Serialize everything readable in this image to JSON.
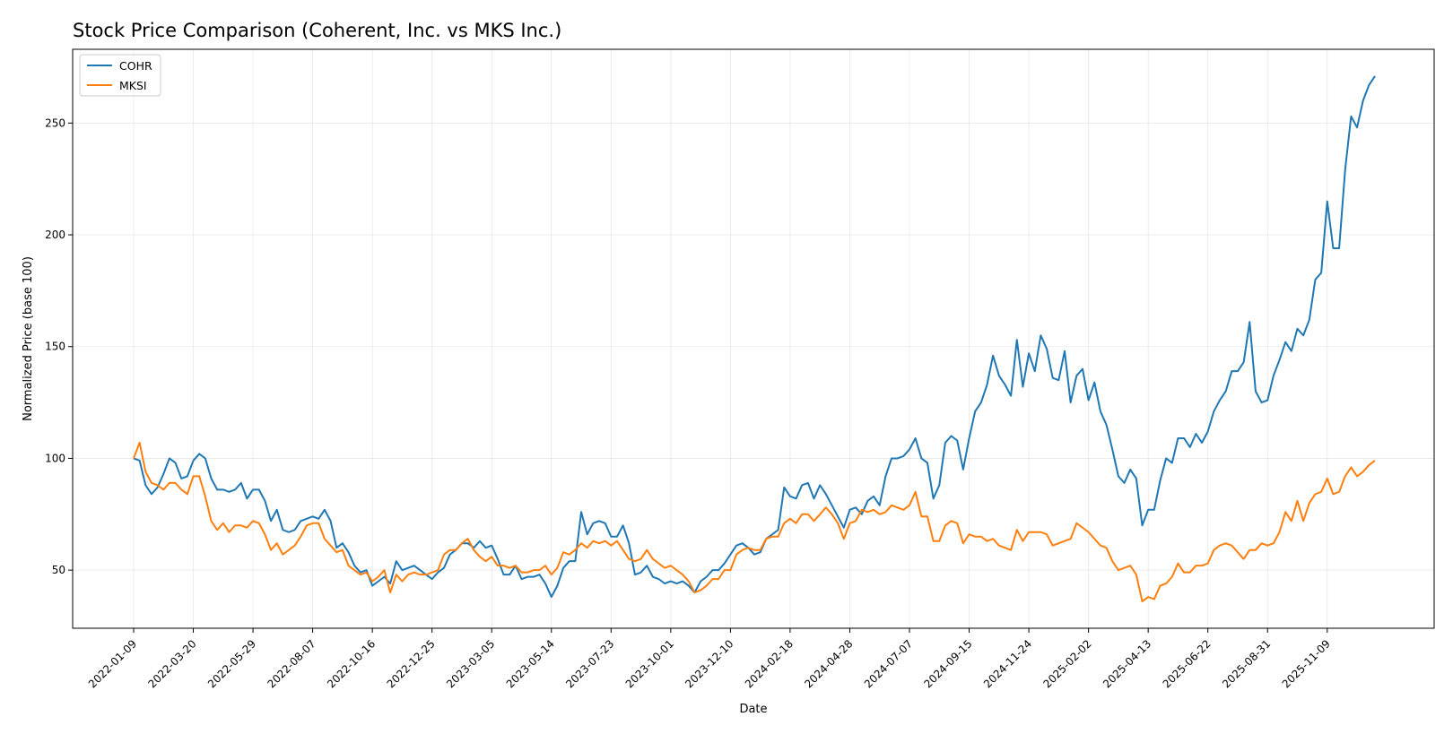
{
  "chart_data": {
    "type": "line",
    "title": "Stock Price Comparison (Coherent, Inc. vs MKS Inc.)",
    "xlabel": "Date",
    "ylabel": "Normalized Price (base 100)",
    "ylim": [
      24,
      283
    ],
    "yticks": [
      50,
      100,
      150,
      200,
      250
    ],
    "xticks": [
      "2022-01-09",
      "2022-03-20",
      "2022-05-29",
      "2022-08-07",
      "2022-10-16",
      "2022-12-25",
      "2023-03-05",
      "2023-05-14",
      "2023-07-23",
      "2023-10-01",
      "2023-12-10",
      "2024-02-18",
      "2024-04-28",
      "2024-07-07",
      "2024-09-15",
      "2024-11-24",
      "2025-02-02",
      "2025-04-13",
      "2025-06-22",
      "2025-08-31",
      "2025-11-09"
    ],
    "x_start": "2022-01-09",
    "x_end": "2026-01-04",
    "grid": true,
    "legend_position": "top-left",
    "series": [
      {
        "name": "COHR",
        "color": "#1f77b4",
        "values": [
          100,
          99,
          88,
          84,
          87,
          93,
          100,
          98,
          91,
          92,
          99,
          102,
          100,
          91,
          86,
          86,
          85,
          86,
          89,
          82,
          86,
          86,
          81,
          72,
          77,
          68,
          67,
          68,
          72,
          73,
          74,
          73,
          77,
          72,
          60,
          62,
          58,
          52,
          49,
          50,
          43,
          45,
          47,
          44,
          54,
          50,
          51,
          52,
          50,
          48,
          46,
          49,
          51,
          57,
          59,
          62,
          62,
          60,
          63,
          60,
          61,
          55,
          48,
          48,
          52,
          46,
          47,
          47,
          48,
          44,
          38,
          43,
          51,
          54,
          54,
          76,
          66,
          71,
          72,
          71,
          65,
          65,
          70,
          62,
          48,
          49,
          52,
          47,
          46,
          44,
          45,
          44,
          45,
          43,
          40,
          45,
          47,
          50,
          50,
          53,
          57,
          61,
          62,
          60,
          57,
          58,
          64,
          66,
          68,
          87,
          83,
          82,
          88,
          89,
          82,
          88,
          84,
          79,
          74,
          69,
          77,
          78,
          75,
          81,
          83,
          79,
          92,
          100,
          100,
          101,
          104,
          109,
          100,
          98,
          82,
          88,
          107,
          110,
          108,
          95,
          109,
          121,
          125,
          133,
          146,
          137,
          133,
          128,
          153,
          132,
          147,
          139,
          155,
          149,
          136,
          135,
          148,
          125,
          137,
          140,
          126,
          134,
          121,
          115,
          104,
          92,
          89,
          95,
          91,
          70,
          77,
          77,
          90,
          100,
          98,
          109,
          109,
          105,
          111,
          107,
          112,
          121,
          126,
          130,
          139,
          139,
          143,
          161,
          130,
          125,
          126,
          137,
          144,
          152,
          148,
          158,
          155,
          162,
          180,
          183,
          215,
          194,
          194,
          229,
          253,
          248,
          260,
          267,
          271
        ]
      },
      {
        "name": "MKSI",
        "color": "#ff7f0e",
        "values": [
          100,
          107,
          94,
          89,
          88,
          86,
          89,
          89,
          86,
          84,
          92,
          92,
          83,
          72,
          68,
          71,
          67,
          70,
          70,
          69,
          72,
          71,
          66,
          59,
          62,
          57,
          59,
          61,
          65,
          70,
          71,
          71,
          64,
          61,
          58,
          59,
          52,
          50,
          48,
          49,
          45,
          47,
          50,
          40,
          48,
          45,
          48,
          49,
          48,
          48,
          49,
          50,
          57,
          59,
          59,
          62,
          64,
          59,
          56,
          54,
          56,
          52,
          52,
          51,
          52,
          49,
          49,
          50,
          50,
          52,
          48,
          51,
          58,
          57,
          59,
          62,
          60,
          63,
          62,
          63,
          61,
          63,
          59,
          55,
          54,
          55,
          59,
          55,
          53,
          51,
          52,
          50,
          48,
          45,
          40,
          41,
          43,
          46,
          46,
          50,
          50,
          57,
          59,
          60,
          59,
          59,
          64,
          65,
          65,
          71,
          73,
          71,
          75,
          75,
          72,
          75,
          78,
          75,
          71,
          64,
          71,
          72,
          77,
          76,
          77,
          75,
          76,
          79,
          78,
          77,
          79,
          85,
          74,
          74,
          63,
          63,
          70,
          72,
          71,
          62,
          66,
          65,
          65,
          63,
          64,
          61,
          60,
          59,
          68,
          63,
          67,
          67,
          67,
          66,
          61,
          62,
          63,
          64,
          71,
          69,
          67,
          64,
          61,
          60,
          54,
          50,
          51,
          52,
          48,
          36,
          38,
          37,
          43,
          44,
          47,
          53,
          49,
          49,
          52,
          52,
          53,
          59,
          61,
          62,
          61,
          58,
          55,
          59,
          59,
          62,
          61,
          62,
          67,
          76,
          72,
          81,
          72,
          80,
          84,
          85,
          91,
          84,
          85,
          92,
          96,
          92,
          94,
          97,
          99
        ]
      }
    ]
  }
}
